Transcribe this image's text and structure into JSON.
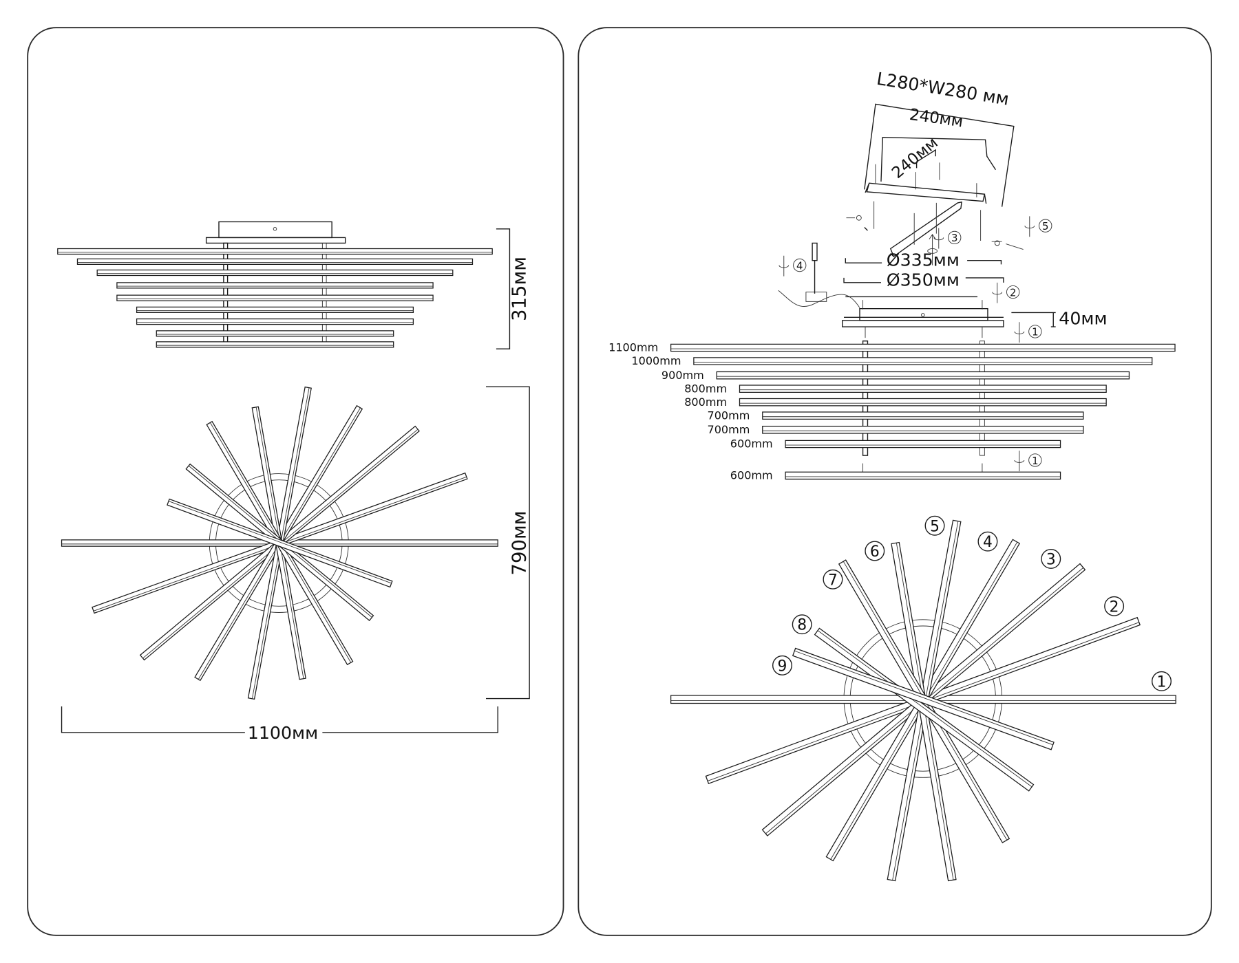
{
  "left_view": {
    "height_label": "315мм",
    "depth_label": "790мм",
    "width_label": "1100мм"
  },
  "right_view": {
    "mount_plate_label": "L280*W280 мм",
    "bracket_width_label": "240мм",
    "bracket_depth_label": "240мм",
    "canopy_inner_diameter": "Ø335мм",
    "canopy_outer_diameter": "Ø350мм",
    "canopy_height": "40мм",
    "bar_lengths": [
      "1100mm",
      "1000mm",
      "900mm",
      "800mm",
      "800mm",
      "700mm",
      "700mm",
      "600mm",
      "600mm"
    ],
    "step_numbers": [
      "1",
      "2",
      "3",
      "4",
      "5",
      "1"
    ],
    "bar_numbers": [
      "1",
      "2",
      "3",
      "4",
      "5",
      "6",
      "7",
      "8",
      "9"
    ]
  },
  "colors": {
    "line": "#1a1a1a",
    "background": "#ffffff"
  }
}
